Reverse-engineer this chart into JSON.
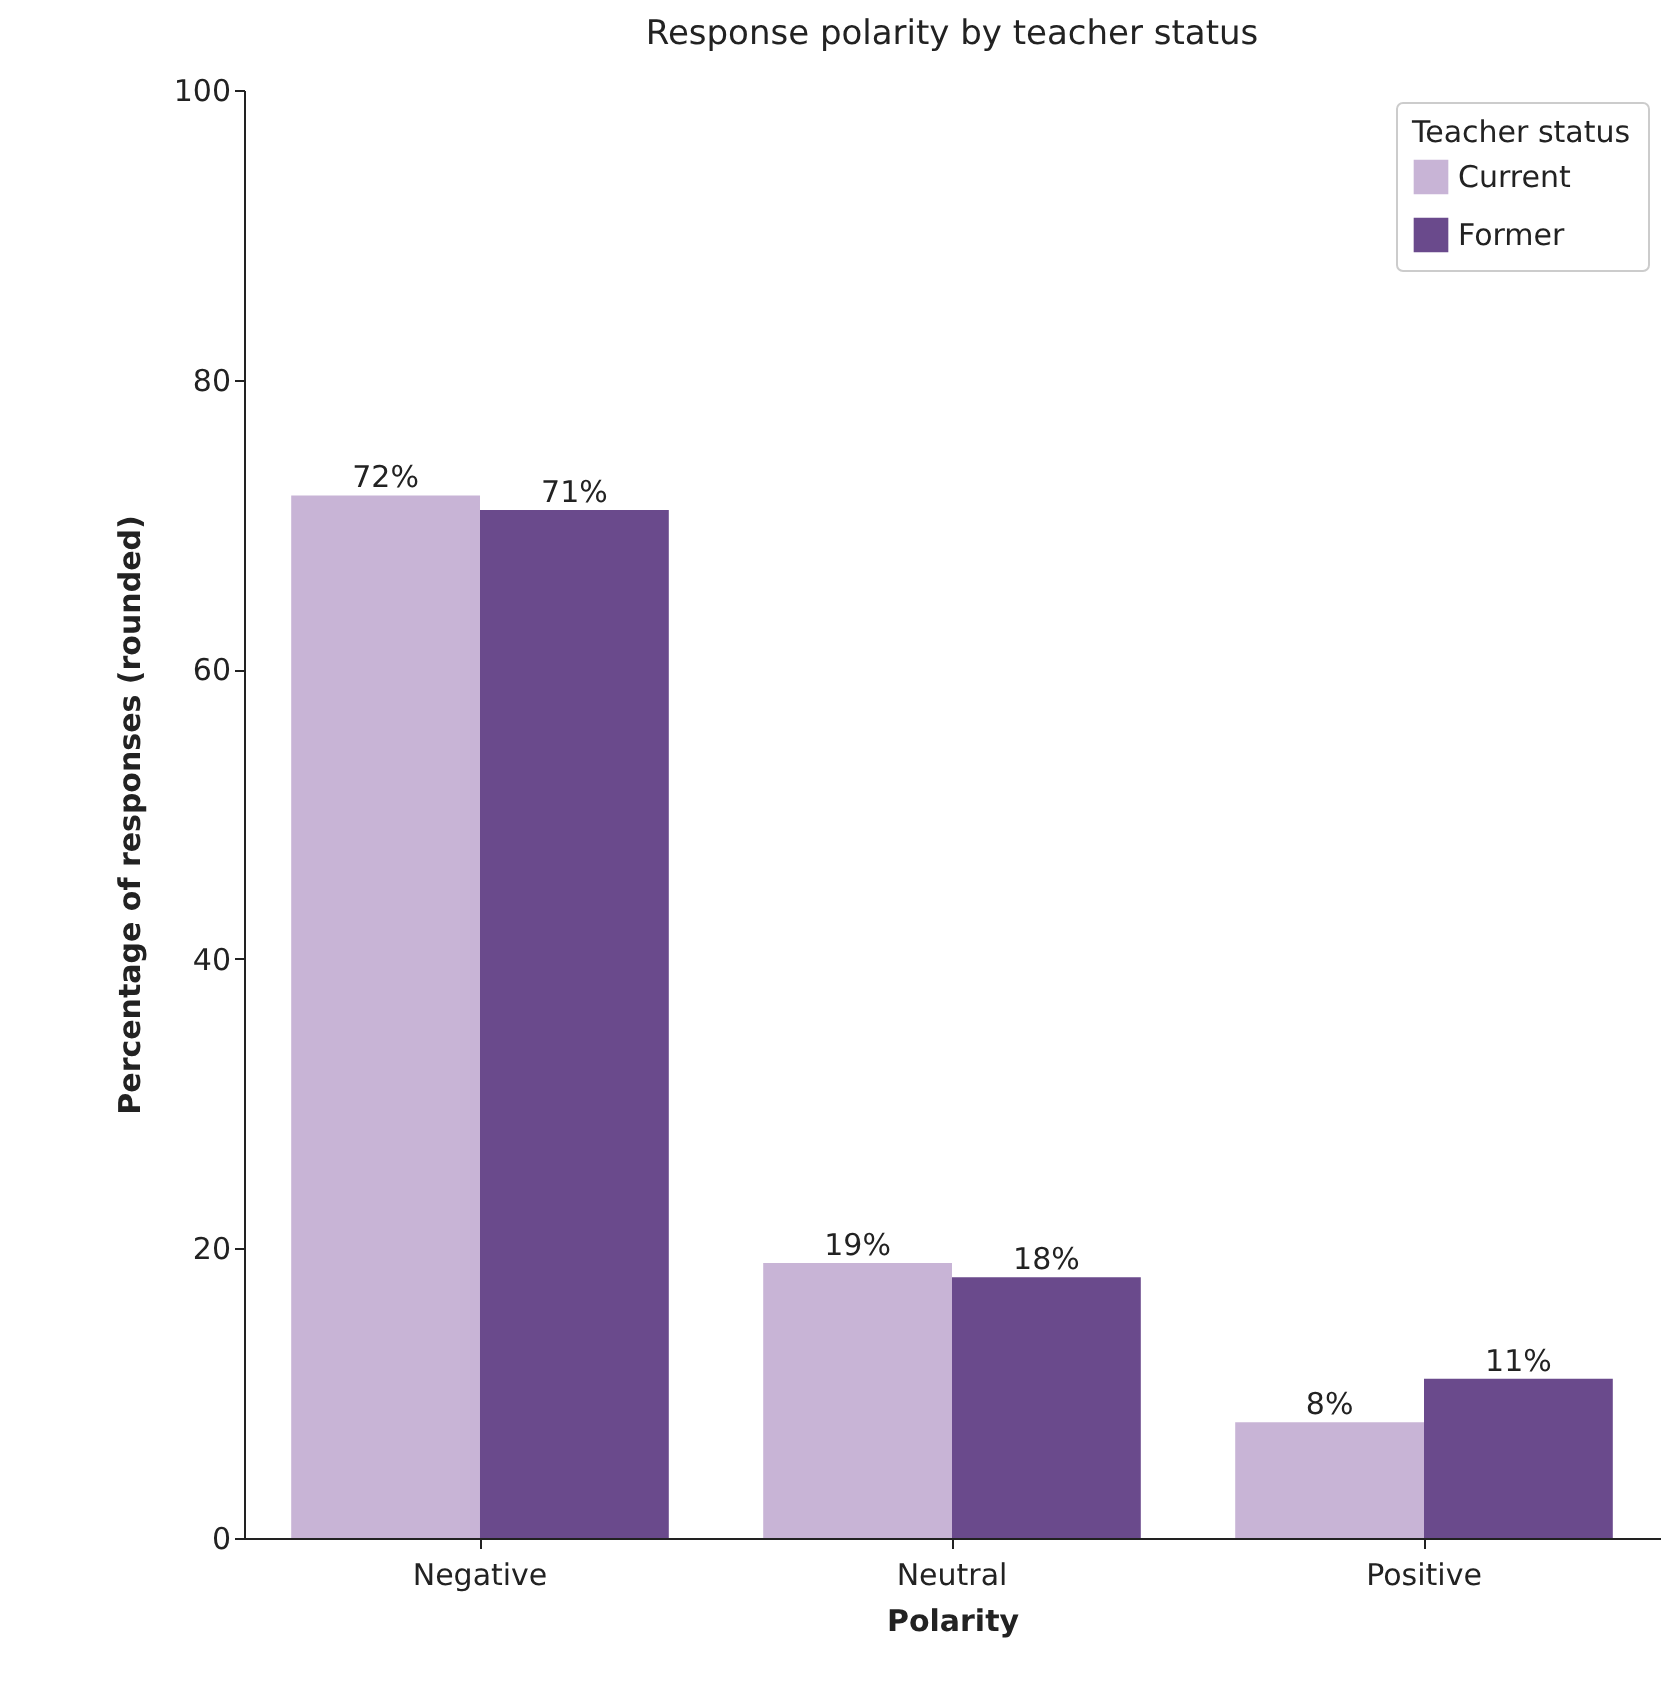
{
  "chart_data": {
    "type": "bar",
    "title": "Response polarity by teacher status",
    "xlabel": "Polarity",
    "ylabel": "Percentage of responses (rounded)",
    "legend_title": "Teacher status",
    "legend": "top right",
    "grid": false,
    "categories": [
      "Negative",
      "Neutral",
      "Positive"
    ],
    "series": [
      {
        "name": "Current",
        "color": "#c8b4d6",
        "values": [
          72,
          19,
          8
        ],
        "value_labels": [
          "72%",
          "19%",
          "8%"
        ]
      },
      {
        "name": "Former",
        "color": "#6a4a8c",
        "values": [
          71,
          18,
          11
        ],
        "value_labels": [
          "71%",
          "18%",
          "11%"
        ]
      }
    ],
    "ylim": [
      0,
      100
    ],
    "yticks": [
      0,
      20,
      40,
      60,
      80,
      100
    ]
  }
}
